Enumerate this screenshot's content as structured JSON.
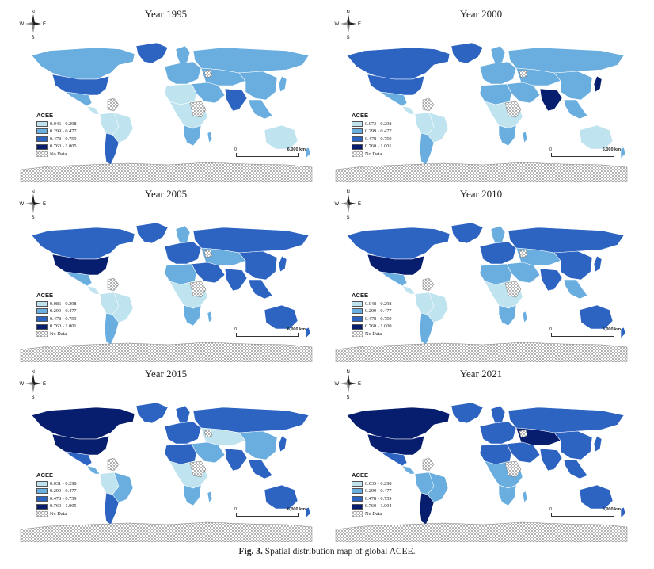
{
  "colors": {
    "class1": "#bfe3ef",
    "class2": "#6aaee0",
    "class3": "#2d64c2",
    "class4": "#071e6e",
    "nodata": "#ffffff",
    "ocean": "#ffffff"
  },
  "compass": {
    "n": "N",
    "s": "S",
    "e": "E",
    "w": "W"
  },
  "scale": {
    "start": "0",
    "end": "6,000 km"
  },
  "legend_title": "ACEE",
  "no_data_label": "No Data",
  "panels": [
    {
      "title": "Year 1995",
      "legend": [
        "0.046 - 0.298",
        "0.299 - 0.477",
        "0.478 - 0.759",
        "0.760 - 1.005"
      ],
      "region_class": {
        "northam": 2,
        "usa": 3,
        "mexico": 2,
        "centam": 1,
        "southam": 1,
        "brazil": 1,
        "argentina": 3,
        "greenland": 3,
        "europe": 2,
        "scandinavia": 2,
        "russia": 2,
        "centralasia": 2,
        "middleeast": 2,
        "northafrica": 1,
        "africa": 1,
        "southafrica": 2,
        "india": 3,
        "china": 2,
        "seasia": 2,
        "japan": 2,
        "australia": 1,
        "nz": 2,
        "madagascar": 2
      }
    },
    {
      "title": "Year 2000",
      "legend": [
        "0.073 - 0.298",
        "0.299 - 0.477",
        "0.478 - 0.759",
        "0.760 - 1.001"
      ],
      "region_class": {
        "northam": 3,
        "usa": 3,
        "mexico": 2,
        "centam": 1,
        "southam": 1,
        "brazil": 1,
        "argentina": 2,
        "greenland": 3,
        "europe": 2,
        "scandinavia": 2,
        "russia": 2,
        "centralasia": 2,
        "middleeast": 2,
        "northafrica": 2,
        "africa": 1,
        "southafrica": 2,
        "india": 4,
        "china": 2,
        "seasia": 2,
        "japan": 4,
        "australia": 1,
        "nz": 2,
        "madagascar": 2
      }
    },
    {
      "title": "Year 2005",
      "legend": [
        "0.086 - 0.298",
        "0.299 - 0.477",
        "0.478 - 0.759",
        "0.760 - 1.001"
      ],
      "region_class": {
        "northam": 3,
        "usa": 4,
        "mexico": 2,
        "centam": 1,
        "southam": 1,
        "brazil": 1,
        "argentina": 2,
        "greenland": 3,
        "europe": 3,
        "scandinavia": 2,
        "russia": 3,
        "centralasia": 2,
        "middleeast": 3,
        "northafrica": 2,
        "africa": 1,
        "southafrica": 2,
        "india": 3,
        "china": 3,
        "seasia": 3,
        "japan": 3,
        "australia": 3,
        "nz": 3,
        "madagascar": 2
      }
    },
    {
      "title": "Year 2010",
      "legend": [
        "0.048 - 0.298",
        "0.299 - 0.477",
        "0.478 - 0.759",
        "0.760 - 1.000"
      ],
      "region_class": {
        "northam": 3,
        "usa": 4,
        "mexico": 2,
        "centam": 1,
        "southam": 1,
        "brazil": 1,
        "argentina": 2,
        "greenland": 3,
        "europe": 3,
        "scandinavia": 2,
        "russia": 3,
        "centralasia": 2,
        "middleeast": 2,
        "northafrica": 2,
        "africa": 1,
        "southafrica": 2,
        "india": 3,
        "china": 3,
        "seasia": 2,
        "japan": 3,
        "australia": 3,
        "nz": 3,
        "madagascar": 2
      }
    },
    {
      "title": "Year 2015",
      "legend": [
        "0.031 - 0.298",
        "0.299 - 0.477",
        "0.478 - 0.759",
        "0.760 - 1.005"
      ],
      "region_class": {
        "northam": 4,
        "usa": 4,
        "mexico": 3,
        "centam": 2,
        "southam": 1,
        "brazil": 2,
        "argentina": 3,
        "greenland": 3,
        "europe": 3,
        "scandinavia": 3,
        "russia": 3,
        "centralasia": 1,
        "middleeast": 2,
        "northafrica": 3,
        "africa": 1,
        "southafrica": 2,
        "india": 3,
        "china": 2,
        "seasia": 3,
        "japan": 3,
        "australia": 3,
        "nz": 3,
        "madagascar": 2
      }
    },
    {
      "title": "Year 2021",
      "legend": [
        "0.035 - 0.298",
        "0.299 - 0.477",
        "0.478 - 0.759",
        "0.760 - 1.004"
      ],
      "region_class": {
        "northam": 4,
        "usa": 4,
        "mexico": 3,
        "centam": 2,
        "southam": 2,
        "brazil": 2,
        "argentina": 4,
        "greenland": 3,
        "europe": 3,
        "scandinavia": 3,
        "russia": 3,
        "centralasia": 4,
        "middleeast": 3,
        "northafrica": 3,
        "africa": 2,
        "southafrica": 2,
        "india": 3,
        "china": 3,
        "seasia": 3,
        "japan": 3,
        "australia": 3,
        "nz": 3,
        "madagascar": 2
      }
    }
  ],
  "caption": {
    "label": "Fig. 3.",
    "text": "Spatial distribution map of global ACEE."
  }
}
